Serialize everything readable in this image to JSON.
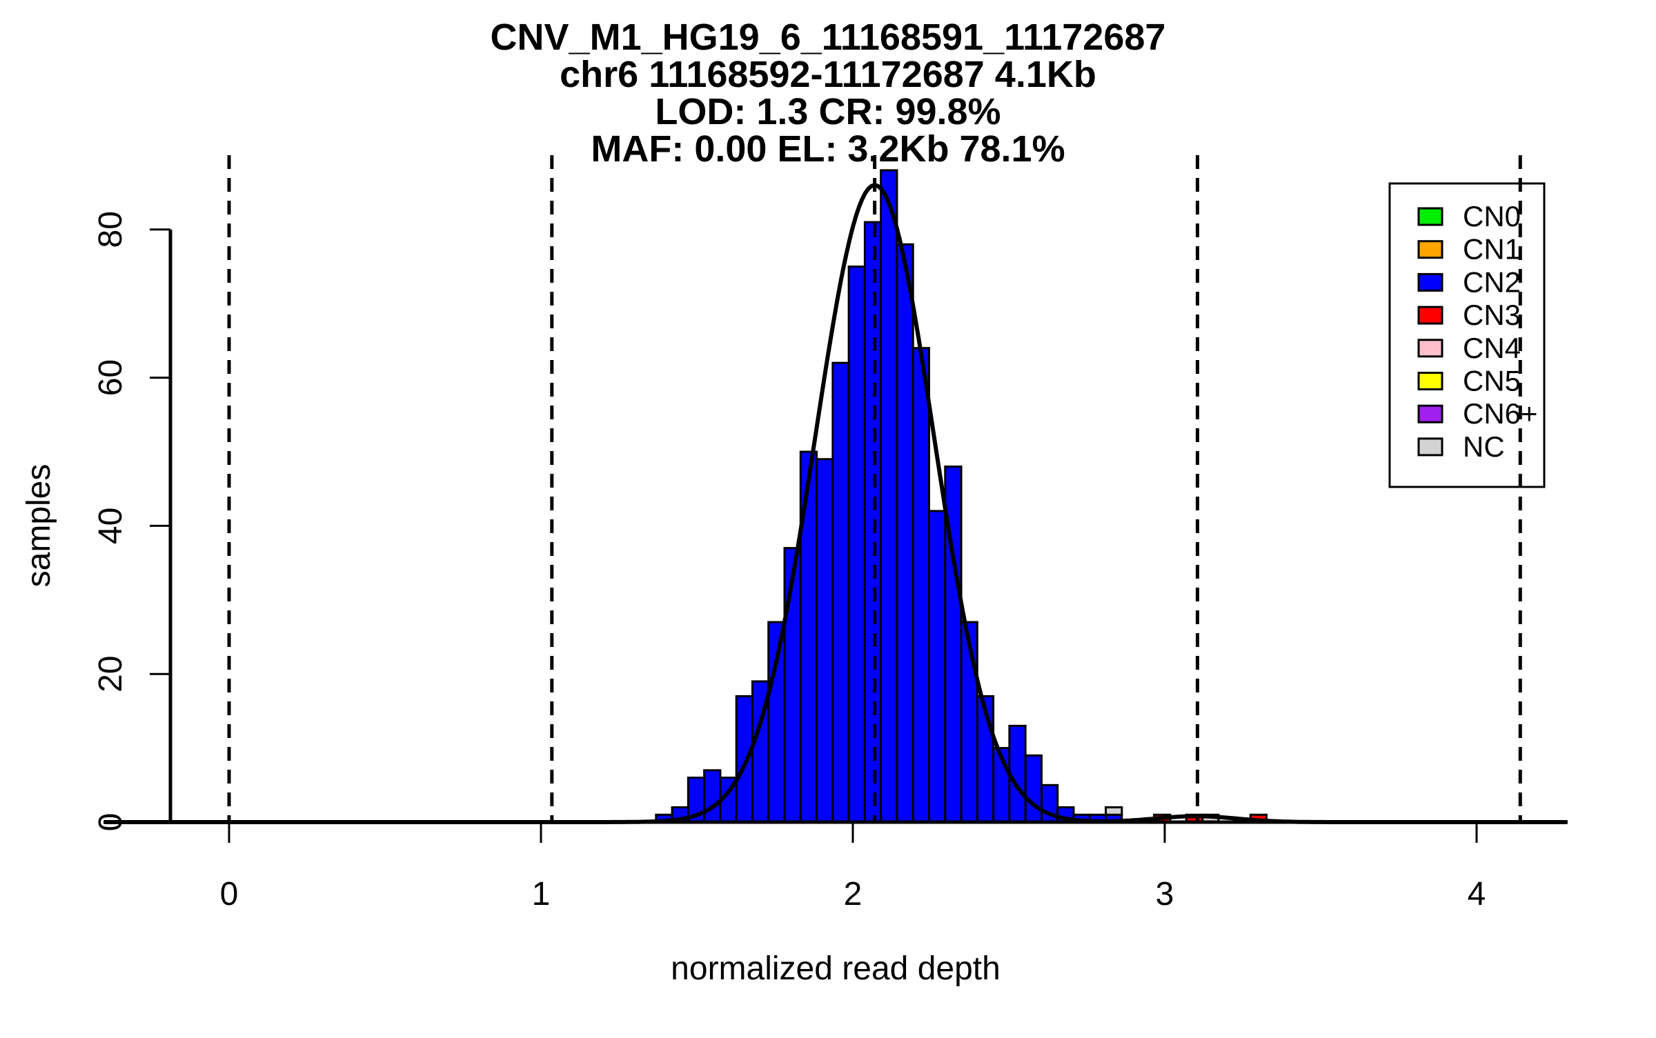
{
  "titles": [
    "CNV_M1_HG19_6_11168591_11172687",
    "chr6 11168592-11172687 4.1Kb",
    "LOD: 1.3 CR: 99.8%",
    "MAF: 0.00 EL: 3.2Kb 78.1%"
  ],
  "chart_data": {
    "type": "bar",
    "title": "CNV_M1_HG19_6_11168591_11172687",
    "subtitle_lines": [
      "chr6 11168592-11172687 4.1Kb",
      "LOD: 1.3 CR: 99.8%",
      "MAF: 0.00 EL: 3.2Kb 78.1%"
    ],
    "xlabel": "normalized read depth",
    "ylabel": "samples",
    "xticks": [
      "0",
      "1",
      "2",
      "3",
      "4"
    ],
    "xtick_values": [
      0,
      1,
      2,
      3,
      4
    ],
    "yticks": [
      "0",
      "20",
      "40",
      "60",
      "80"
    ],
    "ytick_values": [
      0,
      20,
      40,
      60,
      80
    ],
    "xlim": [
      -0.45,
      4.3
    ],
    "ylim": [
      0,
      88
    ],
    "grid": false,
    "histogram": {
      "series_label": "CN2",
      "bin_start": 1.369,
      "bin_width": 0.0515,
      "counts": [
        1,
        2,
        6,
        7,
        6,
        17,
        19,
        27,
        37,
        50,
        49,
        62,
        75,
        81,
        88,
        78,
        64,
        42,
        48,
        27,
        17,
        10,
        13,
        9,
        5,
        2,
        1,
        1,
        1
      ]
    },
    "overlay_bars": [
      {
        "x": 2.811,
        "height": 1,
        "base": 1,
        "cn": "NC"
      },
      {
        "x": 2.966,
        "height": 1,
        "base": 0,
        "cn": "CN3"
      },
      {
        "x": 3.069,
        "height": 1,
        "base": 0,
        "cn": "CN3"
      },
      {
        "x": 3.121,
        "height": 1,
        "base": 0,
        "cn": "NC"
      },
      {
        "x": 3.275,
        "height": 1,
        "base": 0,
        "cn": "CN3"
      }
    ],
    "dashed_guides_x": [
      0,
      1.035,
      2.07,
      3.105,
      4.14
    ],
    "fit_curve_components": [
      {
        "mean": 2.07,
        "sd": 0.19,
        "amplitude": 86
      },
      {
        "mean": 3.1,
        "sd": 0.13,
        "amplitude": 0.8
      }
    ],
    "legend": {
      "position": "top-right",
      "entries": [
        {
          "label": "CN0",
          "color": "#00EE00"
        },
        {
          "label": "CN1",
          "color": "#FFA500"
        },
        {
          "label": "CN2",
          "color": "#0000FF"
        },
        {
          "label": "CN3",
          "color": "#FF0000"
        },
        {
          "label": "CN4",
          "color": "#FFC0CB"
        },
        {
          "label": "CN5",
          "color": "#FFFF00"
        },
        {
          "label": "CN6+",
          "color": "#A020F0"
        },
        {
          "label": "NC",
          "color": "#D3D3D3"
        }
      ]
    },
    "colors": {
      "bar_fill": "#0000FF",
      "bar_stroke": "#000000",
      "curve": "#000000",
      "guide": "#000000",
      "background": "#FFFFFF"
    }
  }
}
